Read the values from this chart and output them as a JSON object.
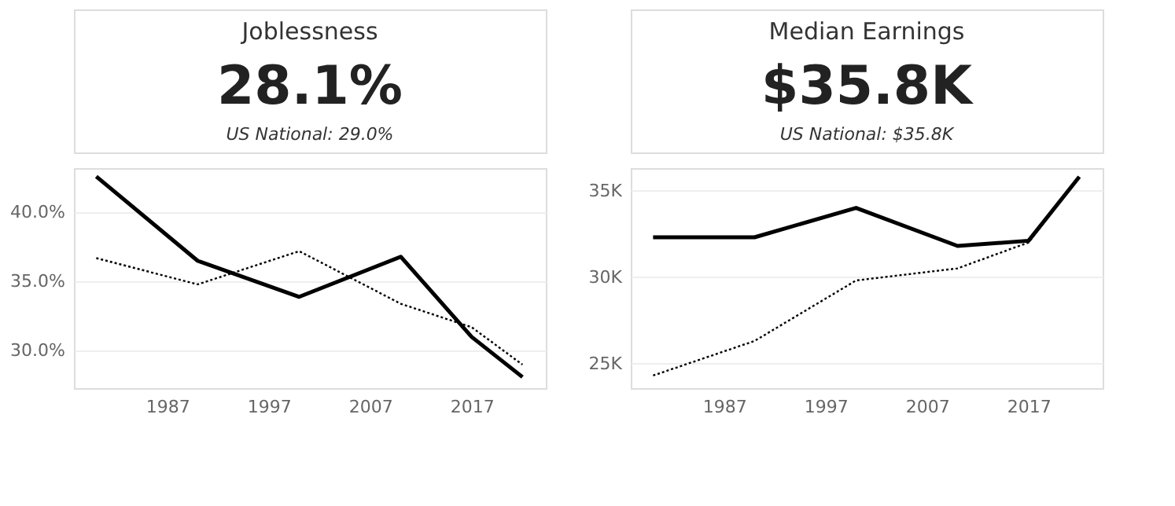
{
  "chart_data": [
    {
      "type": "line",
      "title": "Joblessness",
      "subtitle": "28.1%",
      "annotations": [
        "US National: 29.0%"
      ],
      "x": [
        1980,
        1990,
        2000,
        2010,
        2017,
        2022
      ],
      "series": [
        {
          "color": "#000000",
          "line_style": "solid",
          "values": [
            42.6,
            36.5,
            33.9,
            36.8,
            31.0,
            28.1
          ]
        },
        {
          "color": "#000000",
          "line_style": "dotted",
          "values": [
            36.7,
            34.8,
            37.2,
            33.4,
            31.7,
            29.0
          ]
        }
      ],
      "xlim": [
        1977.8,
        2024.3
      ],
      "xticks": [
        1987,
        1997,
        2007,
        2017
      ],
      "ylim": [
        27.3,
        43.2
      ],
      "yticks": [
        {
          "value": 30,
          "label": "30.0%"
        },
        {
          "value": 35,
          "label": "35.0%"
        },
        {
          "value": 40,
          "label": "40.0%"
        }
      ],
      "grid": "y"
    },
    {
      "type": "line",
      "title": "Median Earnings",
      "subtitle": "$35.8K",
      "annotations": [
        "US National: $35.8K"
      ],
      "x": [
        1980,
        1990,
        2000,
        2010,
        2017,
        2022
      ],
      "series": [
        {
          "color": "#000000",
          "line_style": "dotted",
          "values": [
            24.3,
            26.3,
            29.8,
            30.5,
            32.0,
            35.8
          ]
        },
        {
          "color": "#000000",
          "line_style": "solid",
          "values": [
            32.3,
            32.3,
            34.0,
            31.8,
            32.1,
            35.8
          ]
        }
      ],
      "xlim": [
        1977.8,
        2024.3
      ],
      "xticks": [
        1987,
        1997,
        2007,
        2017
      ],
      "ylim": [
        23.57,
        36.3
      ],
      "yticks": [
        {
          "value": 25,
          "label": "25K"
        },
        {
          "value": 30,
          "label": "30K"
        },
        {
          "value": 35,
          "label": "35K"
        }
      ],
      "grid": "y"
    }
  ]
}
